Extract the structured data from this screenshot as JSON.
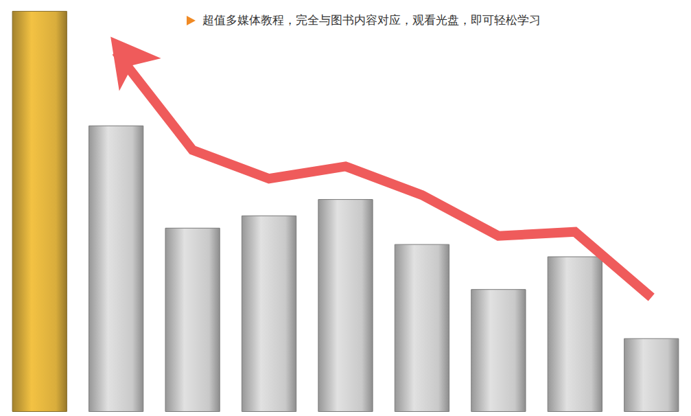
{
  "chart_data": {
    "type": "bar",
    "annotations": [
      "超值多媒体教程，完全与图书内容对应，观看光盘，即可轻松学习"
    ],
    "categories": [
      null,
      null,
      null,
      null,
      null,
      null,
      null,
      null,
      null
    ],
    "series": [
      {
        "type": "bar",
        "colors": [
          "#d9ad3c",
          "#c9c9c9",
          "#c9c9c9",
          "#c9c9c9",
          "#c9c9c9",
          "#c9c9c9",
          "#c9c9c9",
          "#c9c9c9",
          "#c9c9c9"
        ],
        "values": [
          98,
          70,
          45,
          48,
          52,
          41,
          30,
          38,
          18
        ]
      },
      {
        "type": "line",
        "color": "#ef5b5b",
        "marker": "arrow",
        "values": [
          null,
          88,
          64,
          57,
          60,
          53,
          43,
          44,
          28
        ]
      }
    ],
    "ylim": [
      0,
      100
    ],
    "grid": false,
    "tick_labels": false
  }
}
